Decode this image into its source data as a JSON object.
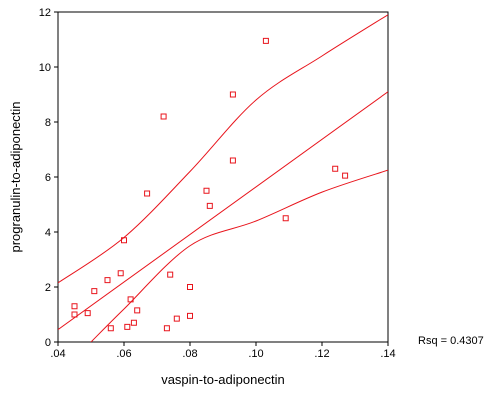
{
  "chart_data": {
    "type": "scatter",
    "xlabel": "vaspin-to-adiponectin",
    "ylabel": "progranulin-to-adiponectin",
    "xlim": [
      0.04,
      0.14
    ],
    "ylim": [
      0,
      12
    ],
    "x_ticks": [
      0.04,
      0.06,
      0.08,
      0.1,
      0.12,
      0.14
    ],
    "x_tick_labels": [
      ".04",
      ".06",
      ".08",
      ".10",
      ".12",
      ".14"
    ],
    "y_ticks": [
      0,
      2,
      4,
      6,
      8,
      10,
      12
    ],
    "y_tick_labels": [
      "0",
      "2",
      "4",
      "6",
      "8",
      "10",
      "12"
    ],
    "grid": false,
    "annotation": "Rsq = 0.4307",
    "colors": {
      "marker": "#e8141c",
      "line": "#e8141c",
      "axis": "#000000"
    },
    "points": [
      [
        0.045,
        1.3
      ],
      [
        0.045,
        1.0
      ],
      [
        0.049,
        1.05
      ],
      [
        0.051,
        1.85
      ],
      [
        0.055,
        2.25
      ],
      [
        0.056,
        0.5
      ],
      [
        0.059,
        2.5
      ],
      [
        0.06,
        3.7
      ],
      [
        0.061,
        0.55
      ],
      [
        0.062,
        1.55
      ],
      [
        0.063,
        0.7
      ],
      [
        0.064,
        1.15
      ],
      [
        0.067,
        5.4
      ],
      [
        0.072,
        8.2
      ],
      [
        0.073,
        0.5
      ],
      [
        0.074,
        2.45
      ],
      [
        0.076,
        0.85
      ],
      [
        0.08,
        2.0
      ],
      [
        0.08,
        0.95
      ],
      [
        0.085,
        5.5
      ],
      [
        0.086,
        4.95
      ],
      [
        0.093,
        9.0
      ],
      [
        0.093,
        6.6
      ],
      [
        0.103,
        10.95
      ],
      [
        0.109,
        4.5
      ],
      [
        0.124,
        6.3
      ],
      [
        0.127,
        6.05
      ]
    ],
    "fit_line": [
      [
        0.04,
        0.45
      ],
      [
        0.14,
        9.1
      ]
    ],
    "upper_band": [
      [
        0.04,
        2.15
      ],
      [
        0.06,
        3.8
      ],
      [
        0.08,
        6.2
      ],
      [
        0.1,
        8.8
      ],
      [
        0.12,
        10.4
      ],
      [
        0.14,
        11.9
      ]
    ],
    "lower_band": [
      [
        0.05,
        0.0
      ],
      [
        0.06,
        1.2
      ],
      [
        0.08,
        3.5
      ],
      [
        0.1,
        4.4
      ],
      [
        0.12,
        5.45
      ],
      [
        0.14,
        6.25
      ]
    ]
  }
}
